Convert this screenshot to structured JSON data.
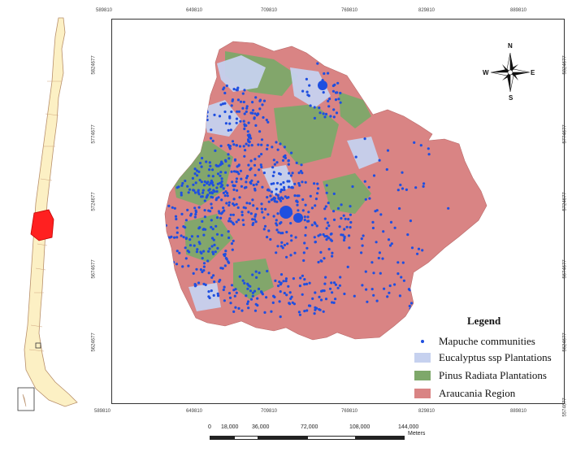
{
  "map": {
    "coordinates_x": [
      "589810",
      "649810",
      "709810",
      "769810",
      "829810",
      "889810"
    ],
    "coordinates_y": [
      "5824677",
      "5774677",
      "5724677",
      "5674677",
      "5624677"
    ],
    "coordinate_bottom_right": "5574677",
    "colors": {
      "region": "#d98484",
      "pinus": "#7ea86a",
      "eucalyptus": "#c6d1ef",
      "points": "#1f4fe0",
      "chile_fill": "#fcf0c4",
      "highlight": "#ff2020"
    }
  },
  "compass": {
    "n": "N",
    "s": "S",
    "e": "E",
    "w": "W"
  },
  "legend": {
    "title": "Legend",
    "items": [
      {
        "label": "Mapuche communities",
        "symbol": "point",
        "color": "#1f4fe0"
      },
      {
        "label": "Eucalyptus ssp Plantations",
        "symbol": "fill",
        "color": "#c6d1ef"
      },
      {
        "label": "Pinus Radiata Plantations",
        "symbol": "fill",
        "color": "#7ea86a"
      },
      {
        "label": "Araucania Region",
        "symbol": "fill",
        "color": "#d98484"
      }
    ]
  },
  "scale": {
    "ticks": [
      "0",
      "18,000",
      "36,000",
      "72,000",
      "108,000",
      "144,000"
    ],
    "unit": "Meters"
  }
}
